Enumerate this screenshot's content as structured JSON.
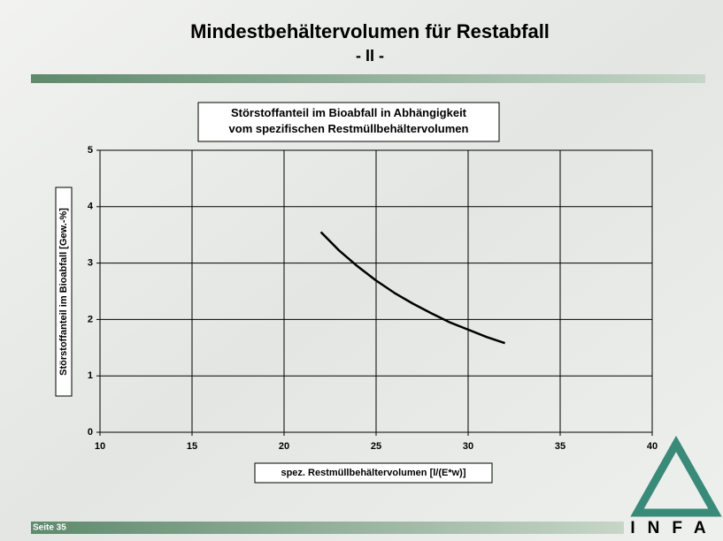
{
  "slide": {
    "title": "Mindestbehältervolumen für Restabfall",
    "subtitle": "- II -",
    "page": "Seite 35",
    "logo": "INFA"
  },
  "chart_data": {
    "type": "line",
    "title": "Störstoffanteil im Bioabfall in Abhängigkeit vom spezifischen Restmüllbehältervolumen",
    "x_label": "spez. Restmüllbehältervolumen [l/(E*w)]",
    "y_label": "Störstoffanteil im Bioabfall [Gew.-%]",
    "x": [
      22,
      23,
      24,
      25,
      26,
      27,
      28,
      29,
      30,
      31,
      32
    ],
    "series": [
      {
        "color": "#000000",
        "values": [
          3.55,
          3.22,
          2.94,
          2.69,
          2.47,
          2.28,
          2.11,
          1.95,
          1.82,
          1.69,
          1.58
        ]
      }
    ],
    "xlim": [
      10,
      40
    ],
    "xticks": [
      10,
      15,
      20,
      25,
      30,
      35,
      40
    ],
    "ylim": [
      0,
      5
    ],
    "yticks": [
      0,
      1,
      2,
      3,
      4,
      5
    ],
    "grid": true
  }
}
